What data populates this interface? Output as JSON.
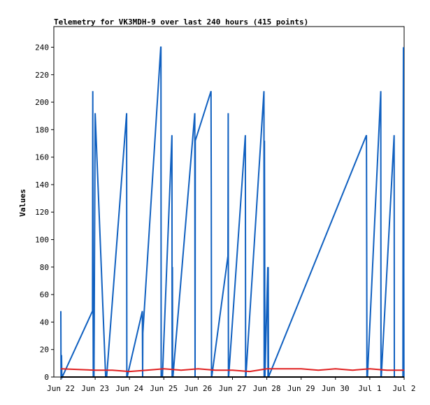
{
  "chart_data": {
    "type": "line",
    "title": "Telemetry for VK3MDH-9 over last 240 hours (415 points)",
    "xlabel": "",
    "ylabel": "Values",
    "x_ticks": [
      "Jun 22",
      "Jun 23",
      "Jun 24",
      "Jun 25",
      "Jun 26",
      "Jun 27",
      "Jun 28",
      "Jun 29",
      "Jun 30",
      "Jul 1",
      "Jul 2"
    ],
    "xlim": [
      "Jun 22 00:00",
      "Jul 2 00:00"
    ],
    "ylim": [
      0,
      255
    ],
    "y_ticks": [
      0,
      20,
      40,
      60,
      80,
      100,
      120,
      140,
      160,
      180,
      200,
      220,
      240
    ],
    "grid": false,
    "legend": false,
    "series": [
      {
        "color": "#1060c0",
        "x": [
          "Jun 22 00:00",
          "Jun 22 00:10",
          "Jun 22 00:20",
          "Jun 22 00:30",
          "Jun 22 00:40",
          "Jun 22 00:50",
          "Jun 22 01:00",
          "Jun 22 22:10",
          "Jun 22 22:20",
          "Jun 22 22:30",
          "Jun 22 22:40",
          "Jun 22 22:50",
          "Jun 22 23:00",
          "Jun 22 23:10",
          "Jun 23 00:00",
          "Jun 23 07:20",
          "Jun 23 07:30",
          "Jun 23 07:40",
          "Jun 23 08:00",
          "Jun 23 22:00",
          "Jun 23 22:10",
          "Jun 23 22:20",
          "Jun 24 09:00",
          "Jun 24 09:10",
          "Jun 24 09:20",
          "Jun 24 21:50",
          "Jun 24 22:00",
          "Jun 24 22:10",
          "Jun 24 22:20",
          "Jun 24 22:30",
          "Jun 24 23:00",
          "Jun 25 05:40",
          "Jun 25 05:50",
          "Jun 25 06:00",
          "Jun 25 06:10",
          "Jun 25 06:20",
          "Jun 25 21:40",
          "Jun 25 21:50",
          "Jun 25 22:00",
          "Jun 26 09:00",
          "Jun 26 09:10",
          "Jun 26 09:20",
          "Jun 26 09:30",
          "Jun 26 20:50",
          "Jun 26 21:00",
          "Jun 26 21:10",
          "Jun 26 21:20",
          "Jun 27 09:00",
          "Jun 27 09:10",
          "Jun 27 09:20",
          "Jun 27 22:00",
          "Jun 27 22:10",
          "Jun 27 22:20",
          "Jun 27 22:30",
          "Jun 27 22:40",
          "Jun 28 00:40",
          "Jun 28 00:50",
          "Jun 28 01:00",
          "Jun 28 01:10",
          "Jun 30 21:40",
          "Jun 30 21:50",
          "Jun 30 22:00",
          "Jun 30 22:10",
          "Jun 30 22:20",
          "Jul 1 07:40",
          "Jul 1 07:50",
          "Jul 1 08:00",
          "Jul 1 17:00",
          "Jul 1 17:10",
          "Jul 1 17:20",
          "Jul 1 17:30",
          "Jul 1 23:10",
          "Jul 1 23:20",
          "Jul 1 23:30",
          "Jul 1 23:40",
          "Jul 1 23:50",
          "Jul 2 00:00"
        ],
        "y": [
          48,
          0,
          0,
          16,
          0,
          2,
          0,
          48,
          208,
          78,
          0,
          0,
          0,
          0,
          192,
          0,
          0,
          0,
          0,
          192,
          0,
          0,
          48,
          0,
          32,
          240,
          240,
          0,
          0,
          0,
          0,
          176,
          0,
          80,
          0,
          0,
          192,
          0,
          172,
          208,
          128,
          0,
          0,
          88,
          192,
          0,
          0,
          176,
          0,
          0,
          208,
          0,
          172,
          104,
          0,
          80,
          0,
          80,
          0,
          176,
          88,
          0,
          0,
          0,
          208,
          0,
          0,
          176,
          0,
          0,
          0,
          0,
          170,
          240,
          160,
          0,
          0
        ]
      },
      {
        "color": "#e02020",
        "x": [
          "Jun 22 00:00",
          "Jun 23 00:00",
          "Jun 23 12:00",
          "Jun 24 00:00",
          "Jun 24 12:00",
          "Jun 25 00:00",
          "Jun 25 12:00",
          "Jun 26 00:00",
          "Jun 26 12:00",
          "Jun 27 00:00",
          "Jun 27 12:00",
          "Jun 28 00:00",
          "Jun 28 12:00",
          "Jun 29 00:00",
          "Jun 29 12:00",
          "Jun 30 00:00",
          "Jun 30 12:00",
          "Jul 1 00:00",
          "Jul 1 12:00",
          "Jul 2 00:00"
        ],
        "y": [
          6,
          5,
          5,
          4,
          5,
          6,
          5,
          6,
          5,
          5,
          4,
          6,
          6,
          6,
          5,
          6,
          5,
          6,
          5,
          5
        ]
      },
      {
        "color": "#000000",
        "x": [
          "Jun 22 00:00",
          "Jul 2 00:00"
        ],
        "y": [
          0,
          0
        ]
      }
    ]
  }
}
